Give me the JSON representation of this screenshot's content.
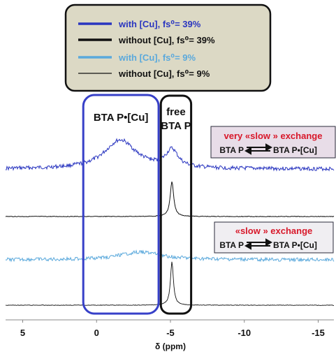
{
  "chart_data": {
    "type": "line",
    "xlabel": "δ (ppm)",
    "x_axis_reversed": true,
    "xlim": [
      6.2,
      -16.2
    ],
    "xticks": [
      {
        "value": 5,
        "label": "5"
      },
      {
        "value": 0,
        "label": "0"
      },
      {
        "value": -5,
        "label": "-5"
      },
      {
        "value": -10,
        "label": "-10"
      },
      {
        "value": -15,
        "label": "-15"
      }
    ],
    "legend": {
      "placement": "top-center",
      "background": "#dcd9c5",
      "entries": [
        {
          "label": "with [Cu], fs⁰= 39%",
          "color": "#2a36c0",
          "line": "thick"
        },
        {
          "label": "without [Cu], fs⁰= 39%",
          "color": "#111111",
          "line": "thick"
        },
        {
          "label": "with [Cu], fs⁰= 9%",
          "color": "#5ba9dc",
          "line": "thick"
        },
        {
          "label": "without [Cu], fs⁰= 9%",
          "color": "#111111",
          "line": "thin"
        }
      ]
    },
    "series": [
      {
        "name": "with [Cu], fs⁰= 39%",
        "color": "#2a36c0",
        "peaks": [
          {
            "center": -1.6,
            "height": 0.75,
            "width": 1.3
          },
          {
            "center": -5.1,
            "height": 0.45,
            "width": 0.5
          }
        ]
      },
      {
        "name": "without [Cu], fs⁰= 39%",
        "color": "#111111",
        "peaks": [
          {
            "center": -5.1,
            "height": 1.0,
            "width": 0.14
          }
        ]
      },
      {
        "name": "with [Cu], fs⁰= 9%",
        "color": "#5ba9dc",
        "peaks": [
          {
            "center": -3.0,
            "height": 0.4,
            "width": 1.7
          }
        ]
      },
      {
        "name": "without [Cu], fs⁰= 9%",
        "color": "#111111",
        "peaks": [
          {
            "center": -5.1,
            "height": 1.0,
            "width": 0.12
          }
        ]
      }
    ],
    "regions": [
      {
        "label": "BTA P•[Cu]",
        "from": 0.9,
        "to": -4.2,
        "color": "#3740c8"
      },
      {
        "label_lines": [
          "free",
          "BTA P"
        ],
        "from": -4.35,
        "to": -6.4,
        "color": "#111111"
      }
    ],
    "annotations": [
      {
        "title": "very «slow » exchange",
        "equation_left": "BTA P",
        "equation_right": "BTA P•[Cu]",
        "title_color": "#d8182a",
        "background": "#e8dde8"
      },
      {
        "title": "«slow » exchange",
        "equation_left": "BTA P",
        "equation_right": "BTA P•[Cu]",
        "title_color": "#d8182a",
        "background": "#f0eef2"
      }
    ]
  }
}
